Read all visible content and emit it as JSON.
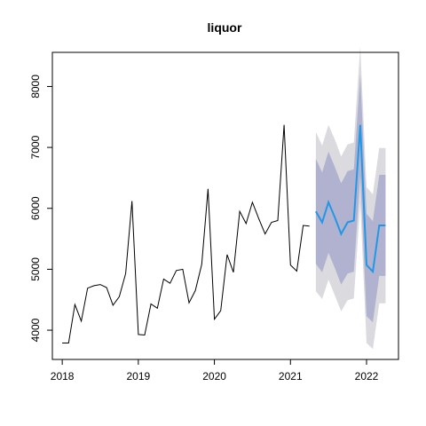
{
  "chart_data": {
    "type": "line",
    "title": "liquor",
    "xlabel": "",
    "ylabel": "",
    "xlim": [
      2017.87,
      2022.42
    ],
    "ylim": [
      3520,
      8560
    ],
    "x_ticks": [
      2018,
      2019,
      2020,
      2021,
      2022
    ],
    "x_tick_labels": [
      "2018",
      "2019",
      "2020",
      "2021",
      "2022"
    ],
    "y_ticks": [
      4000,
      5000,
      6000,
      7000,
      8000
    ],
    "y_tick_labels": [
      "4000",
      "5000",
      "6000",
      "7000",
      "8000"
    ],
    "grid": false,
    "colors": {
      "history": "#000000",
      "forecast": "#2297e6",
      "band80": "#b0b2cf",
      "band95": "#dadadf"
    },
    "series": [
      {
        "role": "history",
        "start": 2018.0,
        "step": 0.08333333,
        "values": [
          3790,
          3790,
          4420,
          4150,
          4690,
          4730,
          4750,
          4700,
          4410,
          4550,
          4930,
          6120,
          3930,
          3920,
          4430,
          4360,
          4840,
          4770,
          4980,
          5000,
          4450,
          4650,
          5080,
          6320,
          4180,
          4320,
          5240,
          4950,
          5950,
          5750,
          6100,
          5830,
          5580,
          5770,
          5800,
          7370,
          5070,
          4970,
          5720,
          5710
        ]
      },
      {
        "role": "forecast",
        "start": 2021.3333,
        "step": 0.08333333,
        "values": [
          5950,
          5770,
          6100,
          5850,
          5580,
          5770,
          5800,
          7370,
          5070,
          4960,
          5720,
          5720
        ],
        "lo80": [
          5090,
          4950,
          5270,
          5020,
          4750,
          4930,
          4960,
          6530,
          4230,
          4130,
          4890,
          4890
        ],
        "hi80": [
          6810,
          6590,
          6930,
          6680,
          6410,
          6610,
          6640,
          8210,
          5910,
          5790,
          6550,
          6550
        ],
        "lo95": [
          4640,
          4510,
          4830,
          4570,
          4310,
          4490,
          4520,
          6080,
          3790,
          3690,
          4440,
          4440
        ],
        "hi95": [
          7250,
          7030,
          7370,
          7130,
          6850,
          7050,
          7080,
          8650,
          6350,
          6230,
          6990,
          6990
        ]
      }
    ]
  }
}
